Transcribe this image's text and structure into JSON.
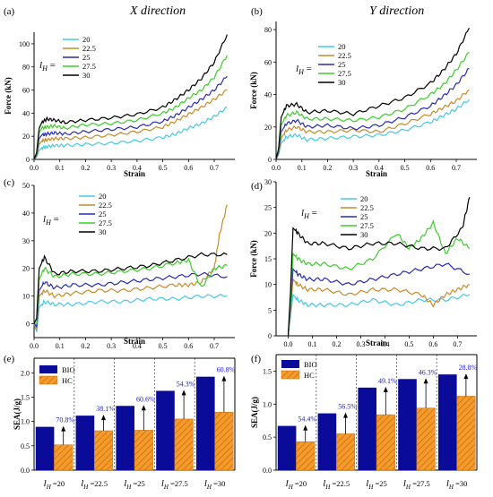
{
  "colors": {
    "s20": "#45c8e8",
    "s22.5": "#c88a2a",
    "s25": "#2a2ab8",
    "s27.5": "#3bcc2a",
    "s30": "#000000",
    "bio": "#0b0b9a",
    "hc": "#f39c2c",
    "pct_text": "#2222cc"
  },
  "chart_data": [
    {
      "panel": "(a)",
      "type": "line",
      "title": "X direction",
      "xlabel": "Strain",
      "ylabel": "Force (kN)",
      "xlim": [
        0,
        0.78
      ],
      "ylim": [
        0,
        110
      ],
      "xticks": [
        "0.0",
        "0.1",
        "0.2",
        "0.3",
        "0.4",
        "0.5",
        "0.6",
        "0.7"
      ],
      "yticks": [
        "0",
        "20",
        "40",
        "60",
        "80",
        "100"
      ],
      "legend_prefix": "lH =",
      "series": [
        {
          "name": "20",
          "color_key": "s20",
          "x": [
            0,
            0.01,
            0.02,
            0.03,
            0.05,
            0.08,
            0.12,
            0.2,
            0.3,
            0.4,
            0.5,
            0.55,
            0.6,
            0.65,
            0.7,
            0.75
          ],
          "y": [
            0,
            2,
            8,
            10,
            11,
            12,
            12,
            13,
            14,
            16,
            19,
            22,
            27,
            31,
            37,
            45
          ]
        },
        {
          "name": "22.5",
          "color_key": "s22.5",
          "x": [
            0,
            0.01,
            0.02,
            0.03,
            0.05,
            0.08,
            0.12,
            0.2,
            0.3,
            0.4,
            0.5,
            0.55,
            0.6,
            0.65,
            0.7,
            0.75
          ],
          "y": [
            0,
            3,
            13,
            16,
            17,
            18,
            18,
            19,
            21,
            24,
            28,
            33,
            39,
            45,
            52,
            60
          ]
        },
        {
          "name": "25",
          "color_key": "s25",
          "x": [
            0,
            0.01,
            0.02,
            0.03,
            0.05,
            0.08,
            0.12,
            0.2,
            0.3,
            0.4,
            0.5,
            0.55,
            0.6,
            0.65,
            0.7,
            0.75
          ],
          "y": [
            0,
            4,
            18,
            21,
            22,
            23,
            22,
            24,
            26,
            28,
            33,
            38,
            45,
            52,
            60,
            72
          ]
        },
        {
          "name": "27.5",
          "color_key": "s27.5",
          "x": [
            0,
            0.01,
            0.02,
            0.03,
            0.05,
            0.08,
            0.12,
            0.2,
            0.3,
            0.4,
            0.5,
            0.55,
            0.6,
            0.65,
            0.7,
            0.75
          ],
          "y": [
            0,
            5,
            23,
            27,
            28,
            29,
            27,
            30,
            31,
            34,
            40,
            45,
            53,
            60,
            71,
            90
          ]
        },
        {
          "name": "30",
          "color_key": "s30",
          "x": [
            0,
            0.01,
            0.02,
            0.03,
            0.05,
            0.08,
            0.12,
            0.2,
            0.3,
            0.4,
            0.5,
            0.55,
            0.6,
            0.65,
            0.7,
            0.75
          ],
          "y": [
            0,
            6,
            27,
            32,
            35,
            34,
            32,
            34,
            36,
            39,
            45,
            52,
            60,
            70,
            84,
            108
          ]
        }
      ]
    },
    {
      "panel": "(b)",
      "type": "line",
      "title": "Y direction",
      "xlabel": "Strain",
      "ylabel": "Force (kN)",
      "xlim": [
        0,
        0.78
      ],
      "ylim": [
        0,
        85
      ],
      "xticks": [
        "0.0",
        "0.1",
        "0.2",
        "0.3",
        "0.4",
        "0.5",
        "0.6",
        "0.7"
      ],
      "yticks": [
        "0",
        "20",
        "40",
        "60",
        "80"
      ],
      "legend_prefix": "lH =",
      "series": [
        {
          "name": "20",
          "color_key": "s20",
          "x": [
            0,
            0.01,
            0.02,
            0.04,
            0.08,
            0.12,
            0.2,
            0.3,
            0.4,
            0.5,
            0.6,
            0.65,
            0.7,
            0.75
          ],
          "y": [
            0,
            3,
            10,
            14,
            15,
            12,
            13,
            14,
            15,
            18,
            23,
            27,
            31,
            37
          ]
        },
        {
          "name": "22.5",
          "color_key": "s22.5",
          "x": [
            0,
            0.01,
            0.02,
            0.04,
            0.08,
            0.12,
            0.2,
            0.3,
            0.4,
            0.5,
            0.6,
            0.65,
            0.7,
            0.75
          ],
          "y": [
            0,
            4,
            13,
            18,
            20,
            17,
            17,
            18,
            17,
            22,
            28,
            32,
            36,
            43
          ]
        },
        {
          "name": "25",
          "color_key": "s25",
          "x": [
            0,
            0.01,
            0.02,
            0.04,
            0.08,
            0.12,
            0.2,
            0.3,
            0.4,
            0.5,
            0.6,
            0.65,
            0.7,
            0.75
          ],
          "y": [
            0,
            5,
            17,
            22,
            24,
            20,
            21,
            19,
            21,
            26,
            33,
            39,
            46,
            56
          ]
        },
        {
          "name": "27.5",
          "color_key": "s27.5",
          "x": [
            0,
            0.01,
            0.02,
            0.04,
            0.08,
            0.12,
            0.2,
            0.3,
            0.4,
            0.5,
            0.6,
            0.65,
            0.7,
            0.75
          ],
          "y": [
            0,
            6,
            21,
            27,
            29,
            25,
            25,
            24,
            26,
            31,
            40,
            46,
            55,
            66
          ]
        },
        {
          "name": "30",
          "color_key": "s30",
          "x": [
            0,
            0.01,
            0.02,
            0.04,
            0.08,
            0.12,
            0.2,
            0.3,
            0.4,
            0.5,
            0.6,
            0.65,
            0.7,
            0.75
          ],
          "y": [
            0,
            7,
            26,
            33,
            34,
            29,
            30,
            28,
            33,
            38,
            47,
            55,
            65,
            81
          ]
        }
      ]
    },
    {
      "panel": "(c)",
      "type": "line",
      "title": "",
      "xlabel": "Strain",
      "ylabel": "",
      "xlim": [
        0,
        0.78
      ],
      "ylim": [
        -5,
        50
      ],
      "xticks": [
        "0.0",
        "0.1",
        "0.2",
        "0.3",
        "0.4",
        "0.5",
        "0.6",
        "0.7"
      ],
      "yticks": [
        "0",
        "10",
        "20",
        "30",
        "40",
        "50"
      ],
      "legend_prefix": "lH =",
      "series": [
        {
          "name": "20",
          "color_key": "s20",
          "x": [
            0,
            0.01,
            0.02,
            0.04,
            0.08,
            0.15,
            0.25,
            0.35,
            0.45,
            0.55,
            0.65,
            0.75
          ],
          "y": [
            0,
            -3,
            6,
            8,
            7,
            7,
            8,
            8,
            9,
            9,
            10,
            10
          ]
        },
        {
          "name": "22.5",
          "color_key": "s22.5",
          "x": [
            0,
            0.01,
            0.02,
            0.04,
            0.08,
            0.15,
            0.25,
            0.35,
            0.45,
            0.55,
            0.6,
            0.65,
            0.7,
            0.72,
            0.75
          ],
          "y": [
            0,
            -2,
            10,
            12,
            10,
            11,
            12,
            12,
            13,
            14,
            14,
            15,
            20,
            32,
            43
          ]
        },
        {
          "name": "25",
          "color_key": "s25",
          "x": [
            0,
            0.01,
            0.02,
            0.04,
            0.08,
            0.15,
            0.25,
            0.35,
            0.45,
            0.55,
            0.65,
            0.75
          ],
          "y": [
            0,
            -1,
            12,
            15,
            13,
            14,
            14,
            15,
            16,
            17,
            18,
            17
          ]
        },
        {
          "name": "27.5",
          "color_key": "s27.5",
          "x": [
            0,
            0.01,
            0.02,
            0.04,
            0.08,
            0.15,
            0.25,
            0.35,
            0.45,
            0.55,
            0.6,
            0.65,
            0.7,
            0.75
          ],
          "y": [
            0,
            0,
            16,
            20,
            17,
            18,
            18,
            19,
            20,
            22,
            23,
            13,
            20,
            21
          ]
        },
        {
          "name": "30",
          "color_key": "s30",
          "x": [
            0,
            0.01,
            0.02,
            0.04,
            0.08,
            0.15,
            0.25,
            0.35,
            0.45,
            0.55,
            0.65,
            0.75
          ],
          "y": [
            0,
            2,
            20,
            24,
            18,
            19,
            19,
            20,
            21,
            23,
            25,
            25
          ]
        }
      ]
    },
    {
      "panel": "(d)",
      "type": "line",
      "title": "",
      "xlabel": "Strain",
      "ylabel": "Force (kN)",
      "xlim": [
        -0.05,
        0.78
      ],
      "ylim": [
        0,
        30
      ],
      "xticks": [
        "0.0",
        "0.1",
        "0.2",
        "0.3",
        "0.4",
        "0.5",
        "0.6",
        "0.7"
      ],
      "yticks": [
        "0",
        "5",
        "10",
        "15",
        "20",
        "25",
        "30"
      ],
      "legend_prefix": "lH =",
      "series": [
        {
          "name": "20",
          "color_key": "s20",
          "x": [
            0,
            0.01,
            0.02,
            0.04,
            0.08,
            0.15,
            0.25,
            0.35,
            0.45,
            0.55,
            0.65,
            0.75
          ],
          "y": [
            0,
            4,
            8,
            7,
            6,
            6,
            6,
            7,
            6,
            7,
            7,
            8
          ]
        },
        {
          "name": "22.5",
          "color_key": "s22.5",
          "x": [
            0,
            0.01,
            0.02,
            0.04,
            0.08,
            0.15,
            0.25,
            0.35,
            0.45,
            0.55,
            0.6,
            0.65,
            0.7,
            0.75
          ],
          "y": [
            0,
            5,
            11,
            10,
            9,
            9,
            8,
            9,
            9,
            8,
            6,
            8,
            9,
            10
          ]
        },
        {
          "name": "25",
          "color_key": "s25",
          "x": [
            0,
            0.01,
            0.02,
            0.04,
            0.08,
            0.15,
            0.25,
            0.35,
            0.45,
            0.55,
            0.65,
            0.75
          ],
          "y": [
            0,
            6,
            13,
            12,
            11,
            11,
            10,
            11,
            12,
            13,
            14,
            12
          ]
        },
        {
          "name": "27.5",
          "color_key": "s27.5",
          "x": [
            0,
            0.01,
            0.02,
            0.04,
            0.08,
            0.15,
            0.25,
            0.35,
            0.45,
            0.5,
            0.55,
            0.6,
            0.65,
            0.7,
            0.75
          ],
          "y": [
            0,
            7,
            16,
            15,
            14,
            14,
            13,
            15,
            20,
            17,
            19,
            22,
            16,
            19,
            17
          ]
        },
        {
          "name": "30",
          "color_key": "s30",
          "x": [
            0,
            0.01,
            0.02,
            0.04,
            0.08,
            0.15,
            0.25,
            0.35,
            0.45,
            0.55,
            0.65,
            0.72,
            0.75
          ],
          "y": [
            0,
            9,
            21,
            20,
            18,
            18,
            17,
            18,
            18,
            17,
            17,
            21,
            27
          ]
        }
      ]
    },
    {
      "panel": "(e)",
      "type": "bar",
      "ylabel": "SEA(J/g)",
      "ylim": [
        0,
        2.3
      ],
      "yticks": [
        "0.0",
        "0.5",
        "1.0",
        "1.5",
        "2.0"
      ],
      "categories": [
        "20",
        "22.5",
        "25",
        "27.5",
        "30"
      ],
      "category_prefix": "lH =",
      "series": [
        {
          "name": "BIO",
          "color_key": "bio",
          "values": [
            0.89,
            1.12,
            1.32,
            1.63,
            1.92
          ]
        },
        {
          "name": "HC",
          "color_key": "hc",
          "values": [
            0.52,
            0.81,
            0.82,
            1.05,
            1.19
          ]
        }
      ],
      "annotations": [
        "70.8%",
        "38.1%",
        "60.6%",
        "54.3%",
        "60.8%"
      ]
    },
    {
      "panel": "(f)",
      "type": "bar",
      "ylabel": "SEA(J/g)",
      "ylim": [
        0,
        1.75
      ],
      "yticks": [
        "0.0",
        "0.5",
        "1.0",
        "1.5"
      ],
      "categories": [
        "20",
        "22.5",
        "25",
        "27.5",
        "30"
      ],
      "category_prefix": "lH =",
      "series": [
        {
          "name": "BIO",
          "color_key": "bio",
          "values": [
            0.67,
            0.86,
            1.25,
            1.38,
            1.45
          ]
        },
        {
          "name": "HC",
          "color_key": "hc",
          "values": [
            0.43,
            0.55,
            0.84,
            0.94,
            1.12
          ]
        }
      ],
      "annotations": [
        "54.4%",
        "56.5%",
        "49.1%",
        "46.3%",
        "28.8%"
      ]
    }
  ]
}
